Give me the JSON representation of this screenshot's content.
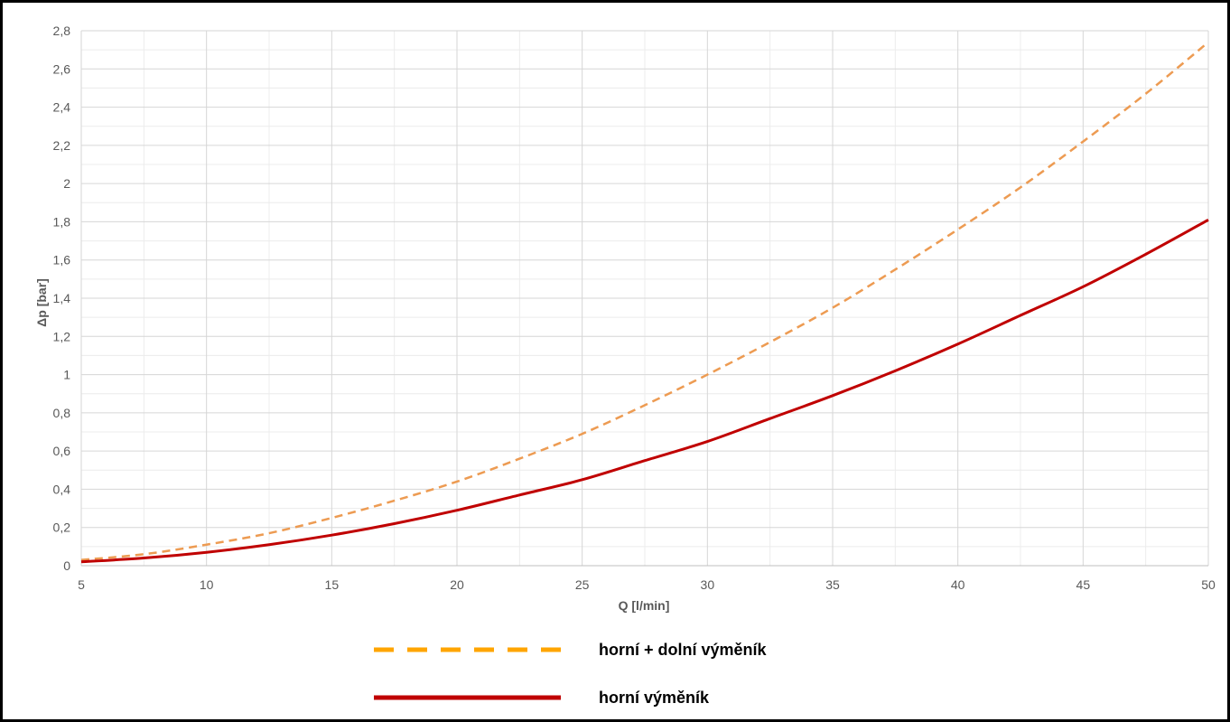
{
  "chart_data": {
    "type": "line",
    "xlabel": "Q [l/min]",
    "ylabel": "Δp [bar]",
    "xlim": [
      5,
      50
    ],
    "ylim": [
      0,
      2.8
    ],
    "x_ticks": [
      "5",
      "10",
      "15",
      "20",
      "25",
      "30",
      "35",
      "40",
      "45",
      "50"
    ],
    "y_ticks": [
      "0",
      "0,2",
      "0,4",
      "0,6",
      "0,8",
      "1",
      "1,2",
      "1,4",
      "1,6",
      "1,8",
      "2",
      "2,2",
      "2,4",
      "2,6",
      "2,8"
    ],
    "grid": true,
    "legend_position": "bottom-center",
    "x": [
      5,
      7.5,
      10,
      12.5,
      15,
      17.5,
      20,
      22.5,
      25,
      27.5,
      30,
      32.5,
      35,
      37.5,
      40,
      42.5,
      45,
      47.5,
      50
    ],
    "series": [
      {
        "name": "horní + dolní výměník",
        "color": "#ed9b52",
        "legend_color": "#ffa500",
        "style": "dashed",
        "values": [
          0.03,
          0.06,
          0.11,
          0.17,
          0.25,
          0.34,
          0.44,
          0.56,
          0.69,
          0.84,
          1.0,
          1.17,
          1.35,
          1.55,
          1.76,
          1.98,
          2.22,
          2.47,
          2.74
        ]
      },
      {
        "name": "horní výměník",
        "color": "#c00000",
        "legend_color": "#c00000",
        "style": "solid",
        "values": [
          0.02,
          0.04,
          0.07,
          0.11,
          0.16,
          0.22,
          0.29,
          0.37,
          0.45,
          0.55,
          0.65,
          0.77,
          0.89,
          1.02,
          1.16,
          1.31,
          1.46,
          1.63,
          1.81
        ]
      }
    ]
  }
}
